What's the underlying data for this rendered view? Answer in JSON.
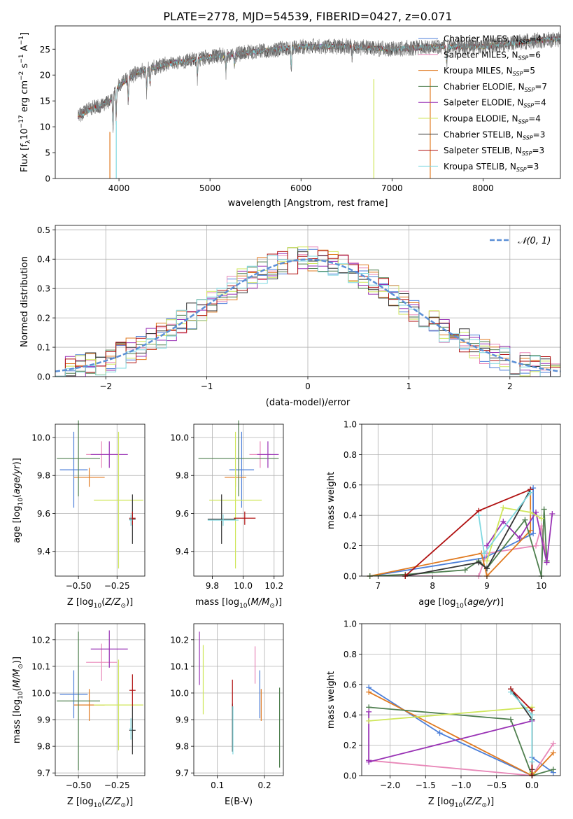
{
  "figure_title": "PLATE=2778, MJD=54539, FIBERID=0427, z=0.071",
  "colors": {
    "Chabrier MILES": "#4c7fd9",
    "Salpeter MILES": "#e887b8",
    "Kroupa MILES": "#e07a20",
    "Chabrier ELODIE": "#4f7f4f",
    "Salpeter ELODIE": "#9932b5",
    "Kroupa ELODIE": "#cfe65a",
    "Chabrier STELIB": "#333333",
    "Salpeter STELIB": "#b01010",
    "Kroupa STELIB": "#7fd8e0",
    "normal": "#5b8fd6"
  },
  "chart_data": [
    {
      "id": "spectrum",
      "type": "line",
      "xlabel": "wavelength [Angstrom, rest frame]",
      "ylabel": "Flux [f_λ10^-17 erg cm^-2 s^-1 A^-1]",
      "xlim": [
        3300,
        8850
      ],
      "ylim": [
        0,
        29.5
      ],
      "xticks": [
        4000,
        5000,
        6000,
        7000,
        8000
      ],
      "yticks": [
        0,
        5,
        10,
        15,
        20,
        25
      ],
      "grid": false,
      "legend_position": "lower-right",
      "data_wavelength_range": [
        3550,
        8850
      ],
      "continuum": [
        [
          3550,
          12.0
        ],
        [
          3700,
          13.5
        ],
        [
          3800,
          14.0
        ],
        [
          3900,
          15.0
        ],
        [
          4000,
          18.0
        ],
        [
          4200,
          20.5
        ],
        [
          4500,
          22.0
        ],
        [
          5000,
          23.5
        ],
        [
          5500,
          24.5
        ],
        [
          6000,
          25.5
        ],
        [
          6500,
          25.5
        ],
        [
          7000,
          25.0
        ],
        [
          7500,
          25.5
        ],
        [
          8000,
          25.5
        ],
        [
          8500,
          26.5
        ],
        [
          8850,
          27.0
        ]
      ],
      "legend": [
        {
          "name": "Chabrier MILES",
          "nssp": "4"
        },
        {
          "name": "Salpeter MILES",
          "nssp": "6"
        },
        {
          "name": "Kroupa MILES",
          "nssp": "5"
        },
        {
          "name": "Chabrier ELODIE",
          "nssp": "7"
        },
        {
          "name": "Salpeter ELODIE",
          "nssp": "4"
        },
        {
          "name": "Kroupa ELODIE",
          "nssp": "4"
        },
        {
          "name": "Chabrier STELIB",
          "nssp": "3"
        },
        {
          "name": "Salpeter STELIB",
          "nssp": "3"
        },
        {
          "name": "Kroupa STELIB",
          "nssp": "3"
        }
      ]
    },
    {
      "id": "residuals",
      "type": "step",
      "xlabel": "(data-model)/error",
      "ylabel": "Normed distribution",
      "xlim": [
        -2.5,
        2.5
      ],
      "ylim": [
        0,
        0.515
      ],
      "xticks": [
        -2,
        -1,
        0,
        1,
        2
      ],
      "yticks": [
        0.0,
        0.1,
        0.2,
        0.3,
        0.4,
        0.5
      ],
      "grid": true,
      "legend_position": "top-right",
      "reference_curve": "N(0,1)",
      "bin_width": 0.1
    },
    {
      "id": "age_vs_Z",
      "type": "errorbar",
      "xlabel": "Z [log10(Z/Z⊙)]",
      "ylabel": "age [log10(age/yr)]",
      "xlim": [
        -0.65,
        -0.07
      ],
      "ylim": [
        9.27,
        10.07
      ],
      "xticks": [
        -0.5,
        -0.25
      ],
      "yticks": [
        9.4,
        9.6,
        9.8,
        10.0
      ],
      "grid": true,
      "points": [
        {
          "series": "Chabrier MILES",
          "x": -0.53,
          "y": 9.83,
          "xerr": 0.09,
          "yerr": 0.2
        },
        {
          "series": "Salpeter MILES",
          "x": -0.35,
          "y": 9.91,
          "xerr": 0.1,
          "yerr": 0.07
        },
        {
          "series": "Kroupa MILES",
          "x": -0.43,
          "y": 9.79,
          "xerr": 0.1,
          "yerr": 0.05
        },
        {
          "series": "Chabrier ELODIE",
          "x": -0.5,
          "y": 9.89,
          "xerr": 0.14,
          "yerr": 0.2
        },
        {
          "series": "Salpeter ELODIE",
          "x": -0.3,
          "y": 9.91,
          "xerr": 0.12,
          "yerr": 0.07
        },
        {
          "series": "Kroupa ELODIE",
          "x": -0.24,
          "y": 9.67,
          "xerr": 0.16,
          "yerr": 0.36
        },
        {
          "series": "Chabrier STELIB",
          "x": -0.15,
          "y": 9.57,
          "xerr": 0.02,
          "yerr": 0.13
        },
        {
          "series": "Salpeter STELIB",
          "x": -0.15,
          "y": 9.575,
          "xerr": 0.02,
          "yerr": 0.035
        },
        {
          "series": "Kroupa STELIB",
          "x": -0.16,
          "y": 9.565,
          "xerr": 0.01,
          "yerr": 0.03
        }
      ]
    },
    {
      "id": "age_vs_mass",
      "type": "errorbar",
      "xlabel": "mass [log10(M/M⊙)]",
      "ylabel": "",
      "xlim": [
        9.68,
        10.26
      ],
      "ylim": [
        9.27,
        10.07
      ],
      "xticks": [
        9.8,
        10.0,
        10.2
      ],
      "yticks": [
        9.4,
        9.6,
        9.8,
        10.0
      ],
      "grid": true,
      "points": [
        {
          "series": "Chabrier MILES",
          "x": 9.99,
          "y": 9.83,
          "xerr": 0.08,
          "yerr": 0.2
        },
        {
          "series": "Salpeter MILES",
          "x": 10.11,
          "y": 9.91,
          "xerr": 0.07,
          "yerr": 0.07
        },
        {
          "series": "Kroupa MILES",
          "x": 9.95,
          "y": 9.79,
          "xerr": 0.07,
          "yerr": 0.05
        },
        {
          "series": "Chabrier ELODIE",
          "x": 9.97,
          "y": 9.89,
          "xerr": 0.26,
          "yerr": 0.2
        },
        {
          "series": "Salpeter ELODIE",
          "x": 10.16,
          "y": 9.91,
          "xerr": 0.07,
          "yerr": 0.07
        },
        {
          "series": "Kroupa ELODIE",
          "x": 9.95,
          "y": 9.67,
          "xerr": 0.17,
          "yerr": 0.36
        },
        {
          "series": "Chabrier STELIB",
          "x": 9.86,
          "y": 9.57,
          "xerr": 0.09,
          "yerr": 0.13
        },
        {
          "series": "Salpeter STELIB",
          "x": 10.01,
          "y": 9.575,
          "xerr": 0.07,
          "yerr": 0.035
        },
        {
          "series": "Kroupa STELIB",
          "x": 9.87,
          "y": 9.565,
          "xerr": 0.1,
          "yerr": 0.03
        }
      ]
    },
    {
      "id": "massweight_vs_age",
      "type": "line",
      "xlabel": "age [log10(age/yr)]",
      "ylabel": "mass weight",
      "xlim": [
        6.7,
        10.35
      ],
      "ylim": [
        0,
        1.0
      ],
      "xticks": [
        7,
        8,
        9,
        10
      ],
      "yticks": [
        0.0,
        0.2,
        0.4,
        0.6,
        0.8,
        1.0
      ],
      "grid": true,
      "series": [
        {
          "name": "Chabrier MILES",
          "points": [
            [
              6.85,
              0.0
            ],
            [
              8.95,
              0.12
            ],
            [
              9.85,
              0.28
            ],
            [
              9.85,
              0.58
            ]
          ]
        },
        {
          "name": "Salpeter MILES",
          "points": [
            [
              6.85,
              0.0
            ],
            [
              8.85,
              0.0
            ],
            [
              9.0,
              0.15
            ],
            [
              9.9,
              0.2
            ],
            [
              10.0,
              0.33
            ],
            [
              10.1,
              0.1
            ]
          ]
        },
        {
          "name": "Kroupa MILES",
          "points": [
            [
              6.85,
              0.0
            ],
            [
              8.9,
              0.15
            ],
            [
              9.0,
              0.0
            ],
            [
              9.8,
              0.3
            ],
            [
              9.8,
              0.55
            ]
          ]
        },
        {
          "name": "Chabrier ELODIE",
          "points": [
            [
              6.85,
              0.0
            ],
            [
              7.5,
              0.01
            ],
            [
              8.6,
              0.04
            ],
            [
              8.85,
              0.1
            ],
            [
              9.0,
              0.05
            ],
            [
              9.7,
              0.37
            ],
            [
              10.0,
              0.0
            ],
            [
              10.05,
              0.44
            ],
            [
              10.1,
              0.1
            ]
          ]
        },
        {
          "name": "Salpeter ELODIE",
          "points": [
            [
              9.0,
              0.2
            ],
            [
              9.3,
              0.36
            ],
            [
              9.6,
              0.25
            ],
            [
              9.9,
              0.42
            ],
            [
              10.1,
              0.09
            ],
            [
              10.2,
              0.41
            ]
          ]
        },
        {
          "name": "Kroupa ELODIE",
          "points": [
            [
              9.0,
              0.1
            ],
            [
              9.3,
              0.45
            ],
            [
              9.8,
              0.42
            ],
            [
              10.0,
              0.38
            ]
          ]
        },
        {
          "name": "Chabrier STELIB",
          "points": [
            [
              7.5,
              0.0
            ],
            [
              8.85,
              0.09
            ],
            [
              9.0,
              0.05
            ],
            [
              9.8,
              0.57
            ]
          ]
        },
        {
          "name": "Salpeter STELIB",
          "points": [
            [
              7.5,
              0.0
            ],
            [
              8.85,
              0.43
            ],
            [
              9.8,
              0.57
            ]
          ]
        },
        {
          "name": "Kroupa STELIB",
          "points": [
            [
              8.85,
              0.4
            ],
            [
              8.95,
              0.15
            ],
            [
              9.8,
              0.55
            ]
          ]
        }
      ]
    },
    {
      "id": "mass_vs_Z",
      "type": "errorbar",
      "xlabel": "Z [log10(Z/Z⊙)]",
      "ylabel": "mass [log10(M/M⊙)]",
      "xlim": [
        -0.65,
        -0.07
      ],
      "ylim": [
        9.69,
        10.26
      ],
      "xticks": [
        -0.5,
        -0.25
      ],
      "yticks": [
        9.7,
        9.8,
        9.9,
        10.0,
        10.1,
        10.2
      ],
      "grid": true,
      "points": [
        {
          "series": "Chabrier MILES",
          "x": -0.53,
          "y": 9.995,
          "xerr": 0.09,
          "yerr": 0.09
        },
        {
          "series": "Salpeter MILES",
          "x": -0.35,
          "y": 10.115,
          "xerr": 0.1,
          "yerr": 0.07
        },
        {
          "series": "Kroupa MILES",
          "x": -0.43,
          "y": 9.955,
          "xerr": 0.1,
          "yerr": 0.06
        },
        {
          "series": "Chabrier ELODIE",
          "x": -0.5,
          "y": 9.97,
          "xerr": 0.14,
          "yerr": 0.26
        },
        {
          "series": "Salpeter ELODIE",
          "x": -0.3,
          "y": 10.165,
          "xerr": 0.12,
          "yerr": 0.07
        },
        {
          "series": "Kroupa ELODIE",
          "x": -0.24,
          "y": 9.955,
          "xerr": 0.16,
          "yerr": 0.17
        },
        {
          "series": "Chabrier STELIB",
          "x": -0.15,
          "y": 9.86,
          "xerr": 0.02,
          "yerr": 0.09
        },
        {
          "series": "Salpeter STELIB",
          "x": -0.15,
          "y": 10.01,
          "xerr": 0.02,
          "yerr": 0.06
        },
        {
          "series": "Kroupa STELIB",
          "x": -0.16,
          "y": 9.865,
          "xerr": 0.01,
          "yerr": 0.04
        }
      ]
    },
    {
      "id": "mass_vs_EBV",
      "type": "errorbar",
      "xlabel": "E(B-V)",
      "ylabel": "",
      "xlim": [
        0.05,
        0.24
      ],
      "ylim": [
        9.69,
        10.26
      ],
      "xticks": [
        0.1,
        0.2
      ],
      "yticks": [
        9.7,
        9.8,
        9.9,
        10.0,
        10.1,
        10.2
      ],
      "grid": true,
      "points": [
        {
          "series": "Chabrier MILES",
          "x": 0.19,
          "y": 9.995,
          "xerr": 0,
          "yerr": 0.09
        },
        {
          "series": "Salpeter MILES",
          "x": 0.18,
          "y": 10.105,
          "xerr": 0,
          "yerr": 0.07
        },
        {
          "series": "Kroupa MILES",
          "x": 0.193,
          "y": 9.955,
          "xerr": 0,
          "yerr": 0.06
        },
        {
          "series": "Chabrier ELODIE",
          "x": 0.232,
          "y": 9.87,
          "xerr": 0,
          "yerr": 0.15
        },
        {
          "series": "Salpeter ELODIE",
          "x": 0.062,
          "y": 10.13,
          "xerr": 0,
          "yerr": 0.1
        },
        {
          "series": "Kroupa ELODIE",
          "x": 0.07,
          "y": 10.05,
          "xerr": 0,
          "yerr": 0.13
        },
        {
          "series": "Chabrier STELIB",
          "x": 0.132,
          "y": 9.87,
          "xerr": 0,
          "yerr": 0.09
        },
        {
          "series": "Salpeter STELIB",
          "x": 0.132,
          "y": 10.0,
          "xerr": 0,
          "yerr": 0.05
        },
        {
          "series": "Kroupa STELIB",
          "x": 0.133,
          "y": 9.86,
          "xerr": 0,
          "yerr": 0.09
        }
      ]
    },
    {
      "id": "massweight_vs_Z",
      "type": "line",
      "xlabel": "Z [log10(Z/Z⊙)]",
      "ylabel": "mass weight",
      "xlim": [
        -2.4,
        0.4
      ],
      "ylim": [
        0,
        1.0
      ],
      "xticks": [
        -2.0,
        -1.5,
        -1.0,
        -0.5,
        0.0
      ],
      "yticks": [
        0.0,
        0.2,
        0.4,
        0.6,
        0.8,
        1.0
      ],
      "grid": true,
      "series": [
        {
          "name": "Chabrier MILES",
          "points": [
            [
              -2.3,
              0.58
            ],
            [
              -1.3,
              0.28
            ],
            [
              0.0,
              0.0
            ],
            [
              0.0,
              0.12
            ],
            [
              0.3,
              0.02
            ]
          ]
        },
        {
          "name": "Salpeter MILES",
          "points": [
            [
              -2.3,
              0.1
            ],
            [
              0.0,
              0.0
            ],
            [
              0.3,
              0.21
            ]
          ]
        },
        {
          "name": "Kroupa MILES",
          "points": [
            [
              -2.3,
              0.55
            ],
            [
              0.0,
              0.0
            ],
            [
              0.3,
              0.15
            ]
          ]
        },
        {
          "name": "Chabrier ELODIE",
          "points": [
            [
              -2.3,
              0.45
            ],
            [
              -0.3,
              0.37
            ],
            [
              0.0,
              0.0
            ],
            [
              0.3,
              0.04
            ]
          ]
        },
        {
          "name": "Salpeter ELODIE",
          "points": [
            [
              -2.3,
              0.1
            ],
            [
              -2.3,
              0.42
            ],
            [
              -2.3,
              0.09
            ],
            [
              0.0,
              0.36
            ]
          ]
        },
        {
          "name": "Kroupa ELODIE",
          "points": [
            [
              -2.3,
              0.36
            ],
            [
              0.0,
              0.45
            ],
            [
              0.0,
              0.02
            ]
          ]
        },
        {
          "name": "Chabrier STELIB",
          "points": [
            [
              -0.3,
              0.57
            ],
            [
              0.0,
              0.37
            ],
            [
              0.0,
              0.04
            ]
          ]
        },
        {
          "name": "Salpeter STELIB",
          "points": [
            [
              -0.3,
              0.57
            ],
            [
              0.0,
              0.43
            ],
            [
              0.0,
              0.0
            ]
          ]
        },
        {
          "name": "Kroupa STELIB",
          "points": [
            [
              -0.3,
              0.55
            ],
            [
              0.0,
              0.4
            ],
            [
              0.0,
              0.09
            ]
          ]
        }
      ]
    }
  ]
}
